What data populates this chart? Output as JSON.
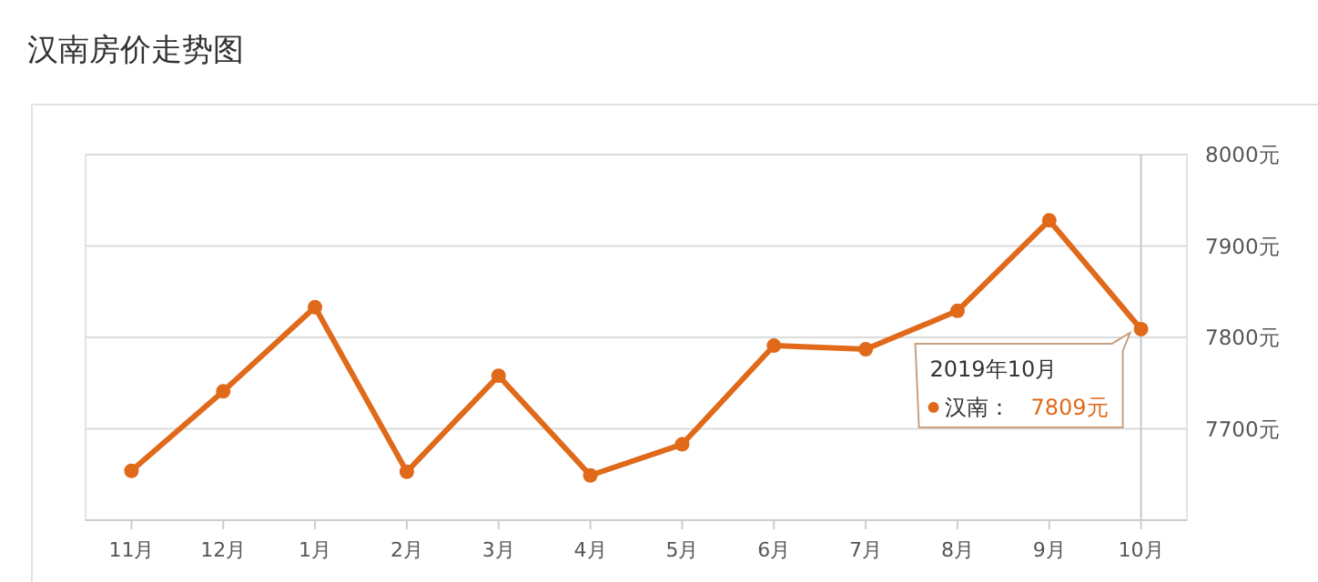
{
  "chart_data": {
    "type": "line",
    "title": "汉南房价走势图",
    "categories": [
      "11月",
      "12月",
      "1月",
      "2月",
      "3月",
      "4月",
      "5月",
      "6月",
      "7月",
      "8月",
      "9月",
      "10月"
    ],
    "series": [
      {
        "name": "汉南：",
        "color": "#e0691a",
        "values": [
          7654,
          7741,
          7833,
          7653,
          7758,
          7649,
          7683,
          7791,
          7787,
          7829,
          7928,
          7809
        ],
        "value_labels": [
          null,
          null,
          null,
          null,
          null,
          null,
          null,
          null,
          null,
          null,
          null,
          "7809元"
        ]
      }
    ],
    "ylim": [
      7600,
      8000
    ],
    "yticks": [
      {
        "value": 7700,
        "label": "7700元"
      },
      {
        "value": 7800,
        "label": "7800元"
      },
      {
        "value": 7900,
        "label": "7900元"
      },
      {
        "value": 8000,
        "label": "8000元"
      }
    ],
    "ref_lines": [
      {
        "axis": "x",
        "value": "10月",
        "color": "#c8c8c8"
      }
    ],
    "annotations": [
      "2019年10月"
    ],
    "grid": "y",
    "marker": "circle",
    "line_style": "solid",
    "legend": "right"
  }
}
